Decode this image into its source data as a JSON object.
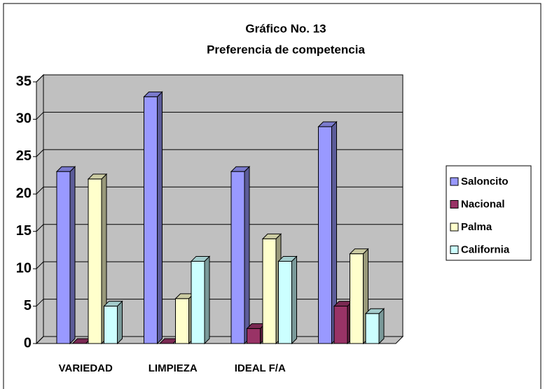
{
  "chart_data": {
    "type": "bar3d",
    "title": "Gráfico No. 13",
    "subtitle": "Preferencia de competencia",
    "categories": [
      "VARIEDAD",
      "LIMPIEZA",
      "IDEAL F/A",
      null
    ],
    "series": [
      {
        "name": "Saloncito",
        "color": "#9999ff",
        "values": [
          23,
          33,
          23,
          29
        ]
      },
      {
        "name": "Nacional",
        "color": "#993366",
        "values": [
          0,
          0,
          2,
          5
        ]
      },
      {
        "name": "Palma",
        "color": "#ffffcc",
        "values": [
          22,
          6,
          14,
          12
        ]
      },
      {
        "name": "California",
        "color": "#ccffff",
        "values": [
          5,
          11,
          11,
          4
        ]
      }
    ],
    "ylim": [
      0,
      35
    ],
    "yticks": [
      0,
      5,
      10,
      15,
      20,
      25,
      30,
      35
    ],
    "grid": true,
    "legend": "right",
    "background": "#c0c0c0"
  }
}
